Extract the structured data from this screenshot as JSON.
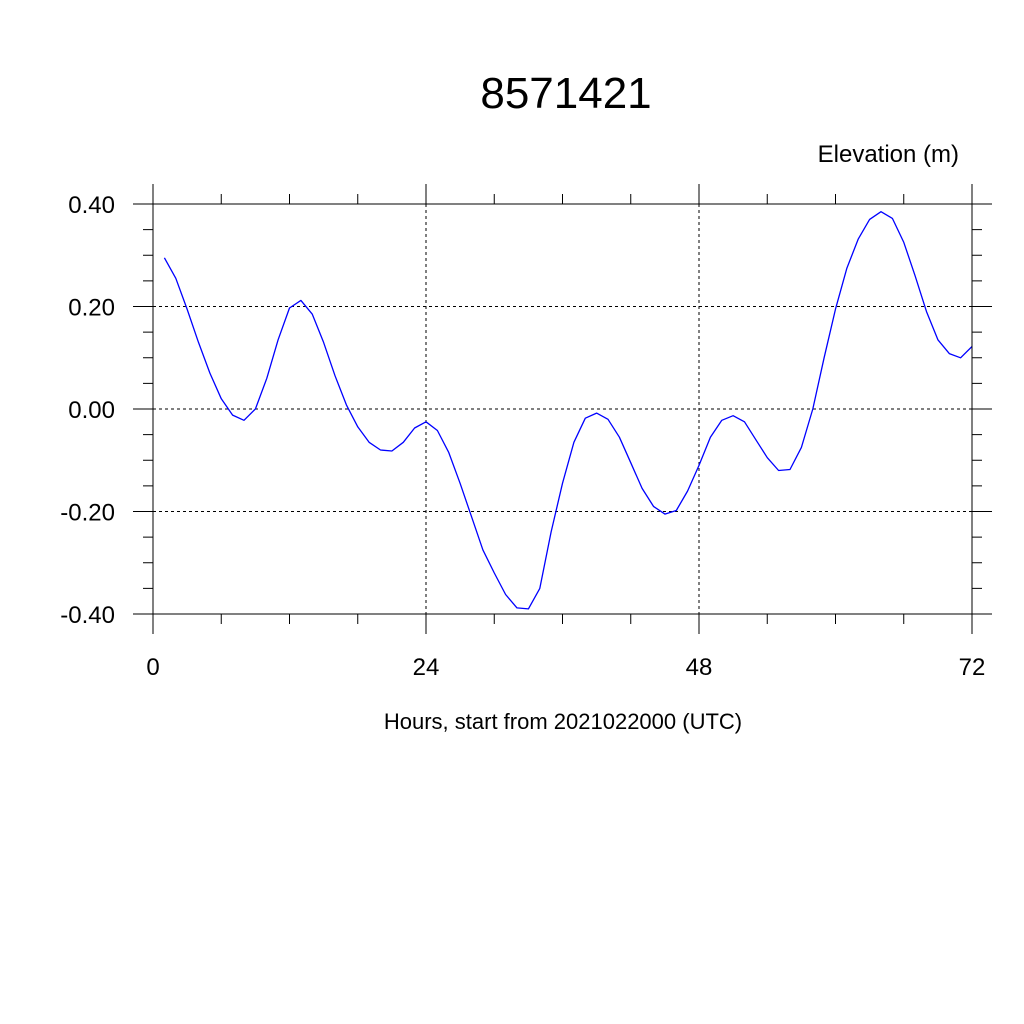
{
  "chart_data": {
    "type": "line",
    "title": "8571421",
    "ylabel": "Elevation (m)",
    "xlabel": "Hours, start from 2021022000 (UTC)",
    "xlim": [
      0,
      72
    ],
    "ylim": [
      -0.4,
      0.4
    ],
    "x_ticks": [
      0,
      24,
      48,
      72
    ],
    "x_tick_labels": [
      "0",
      "24",
      "48",
      "72"
    ],
    "y_ticks": [
      -0.4,
      -0.2,
      0.0,
      0.2,
      0.4
    ],
    "y_tick_labels": [
      "-0.40",
      "-0.20",
      "0.00",
      "0.20",
      "0.40"
    ],
    "grid": true,
    "line_color": "#0000ff",
    "series": [
      {
        "x": [
          1,
          2,
          3,
          4,
          5,
          6,
          7,
          8,
          9,
          10,
          11,
          12,
          13,
          14,
          15,
          16,
          17,
          18,
          19,
          20,
          21,
          22,
          23,
          24,
          25,
          26,
          27,
          28,
          29,
          30,
          31,
          32,
          33,
          34,
          35,
          36,
          37,
          38,
          39,
          40,
          41,
          42,
          43,
          44,
          45,
          46,
          47,
          48,
          49,
          50,
          51,
          52,
          53,
          54,
          55,
          56,
          57,
          58,
          59,
          60,
          61,
          62,
          63,
          64,
          65,
          66,
          67,
          68,
          69,
          70,
          71,
          72
        ],
        "values": [
          0.295,
          0.255,
          0.195,
          0.13,
          0.07,
          0.02,
          -0.012,
          -0.022,
          0.0,
          0.06,
          0.135,
          0.197,
          0.212,
          0.185,
          0.13,
          0.065,
          0.008,
          -0.035,
          -0.065,
          -0.08,
          -0.082,
          -0.065,
          -0.037,
          -0.025,
          -0.042,
          -0.085,
          -0.145,
          -0.21,
          -0.275,
          -0.32,
          -0.362,
          -0.388,
          -0.39,
          -0.35,
          -0.24,
          -0.145,
          -0.065,
          -0.018,
          -0.008,
          -0.02,
          -0.055,
          -0.105,
          -0.155,
          -0.19,
          -0.205,
          -0.198,
          -0.16,
          -0.11,
          -0.055,
          -0.022,
          -0.013,
          -0.025,
          -0.06,
          -0.095,
          -0.12,
          -0.118,
          -0.075,
          0.0,
          0.1,
          0.195,
          0.275,
          0.332,
          0.37,
          0.385,
          0.372,
          0.325,
          0.26,
          0.19,
          0.135,
          0.108,
          0.1,
          0.122
        ]
      }
    ]
  }
}
